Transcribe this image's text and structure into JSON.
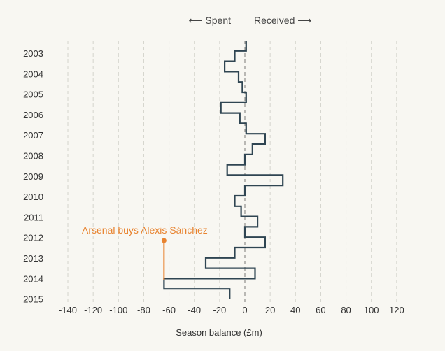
{
  "header": {
    "spent_label": "⟵ Spent",
    "received_label": "Received ⟶"
  },
  "colors": {
    "line": "#2f4552",
    "annotation": "#e8832f",
    "background": "#f8f7f2"
  },
  "chart_data": {
    "type": "line",
    "xlabel": "Season balance (£m)",
    "ylabel": "",
    "xlim": [
      -140,
      120
    ],
    "x_ticks": [
      -140,
      -120,
      -100,
      -80,
      -60,
      -40,
      -20,
      0,
      20,
      40,
      60,
      80,
      100,
      120
    ],
    "grid": true,
    "years": [
      "2003",
      "2004",
      "2005",
      "2006",
      "2007",
      "2008",
      "2009",
      "2010",
      "2011",
      "2012",
      "2013",
      "2014",
      "2015"
    ],
    "series": [
      {
        "segments": [
          1,
          -8,
          -16,
          -5,
          -2,
          1,
          -19,
          -4,
          1,
          16,
          6,
          0,
          -14,
          30,
          0,
          -8,
          -3,
          10,
          0,
          16,
          -8,
          -31,
          8,
          -64,
          -12
        ]
      }
    ],
    "annotation": {
      "text": "Arsenal buys Alexis Sánchez",
      "x": -64,
      "year": "2014"
    }
  }
}
